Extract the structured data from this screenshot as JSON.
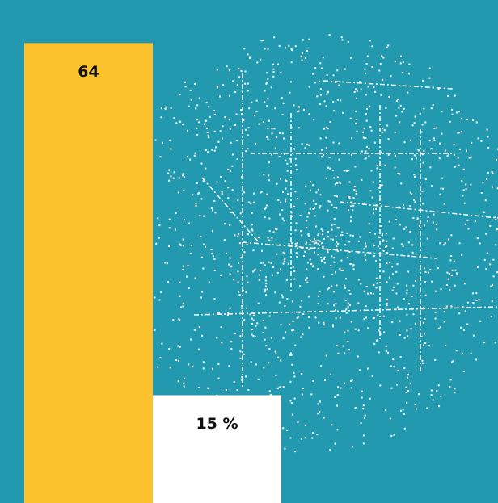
{
  "chart_data": {
    "type": "bar",
    "categories": [
      null,
      null
    ],
    "values": [
      64,
      15
    ],
    "value_labels": [
      "64",
      "15 %"
    ],
    "colors": [
      "#fcc22e",
      "#ffffff"
    ],
    "ylim": [
      0,
      70
    ]
  }
}
